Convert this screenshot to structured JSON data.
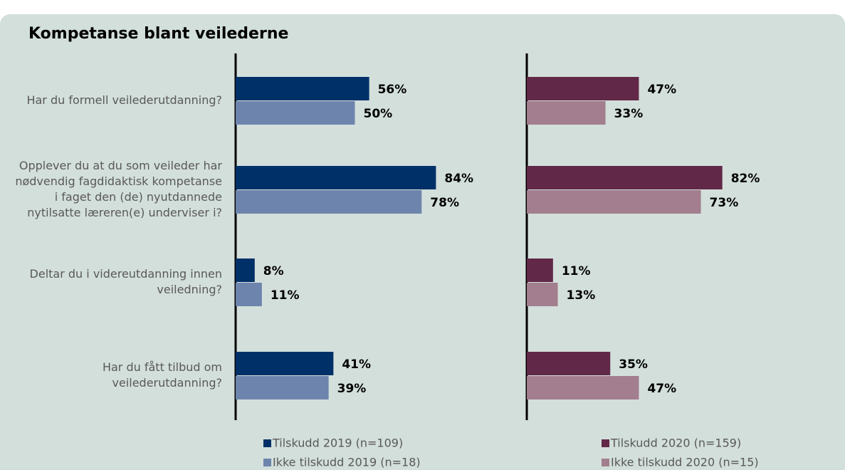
{
  "chart_data": {
    "type": "bar",
    "orientation": "horizontal",
    "title": "Kompetanse blant veilederne",
    "categories": [
      "Har du formell veilederutdanning?",
      "Opplever du at du som veileder har nødvendig fagdidaktisk kompetanse i faget den (de) nyutdannede nytilsatte læreren(e) underviser i?",
      "Deltar du i videreutdanning innen veiledning?",
      "Har du fått tilbud om veilederutdanning?"
    ],
    "xlim": [
      0,
      100
    ],
    "series": [
      {
        "name": "Tilskudd 2019 (n=109)",
        "color": "#003068",
        "panel": 0,
        "values": [
          56,
          84,
          8,
          41
        ],
        "value_labels": [
          "56%",
          "84%",
          "8%",
          "41%"
        ]
      },
      {
        "name": "Ikke tilskudd 2019 (n=18)",
        "color": "#6d85ad",
        "panel": 0,
        "values": [
          50,
          78,
          11,
          39
        ],
        "value_labels": [
          "50%",
          "78%",
          "11%",
          "39%"
        ]
      },
      {
        "name": "Tilskudd 2020 (n=159)",
        "color": "#622848",
        "panel": 1,
        "values": [
          47,
          82,
          11,
          35
        ],
        "value_labels": [
          "47%",
          "82%",
          "11%",
          "35%"
        ]
      },
      {
        "name": "Ikke tilskudd 2020 (n=15)",
        "color": "#a27e8e",
        "panel": 1,
        "values": [
          33,
          73,
          13,
          47
        ],
        "value_labels": [
          "33%",
          "73%",
          "13%",
          "47%"
        ]
      }
    ]
  }
}
